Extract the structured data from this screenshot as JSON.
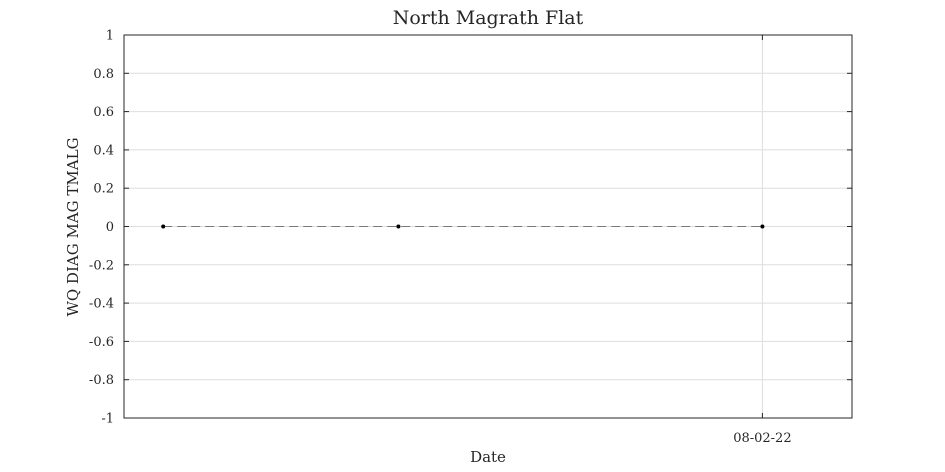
{
  "chart_data": {
    "type": "line",
    "title": "North Magrath Flat",
    "xlabel": "Date",
    "ylabel": "WQ DIAG MAG TMALG",
    "ylim": [
      -1,
      1
    ],
    "yticks": [
      "-1",
      "-0.8",
      "-0.6",
      "-0.4",
      "-0.2",
      "0",
      "0.2",
      "0.4",
      "0.6",
      "0.8",
      "1"
    ],
    "xticks": [
      {
        "value": 2022.58,
        "label": "08-02-22"
      }
    ],
    "xlim": [
      2021.44,
      2022.74
    ],
    "grid": true,
    "legend": "none",
    "series": [
      {
        "x": [
          2021.51,
          2021.93,
          2022.58
        ],
        "y": [
          0,
          0,
          0
        ],
        "line_style": "dashed",
        "color": "#000000"
      }
    ]
  }
}
